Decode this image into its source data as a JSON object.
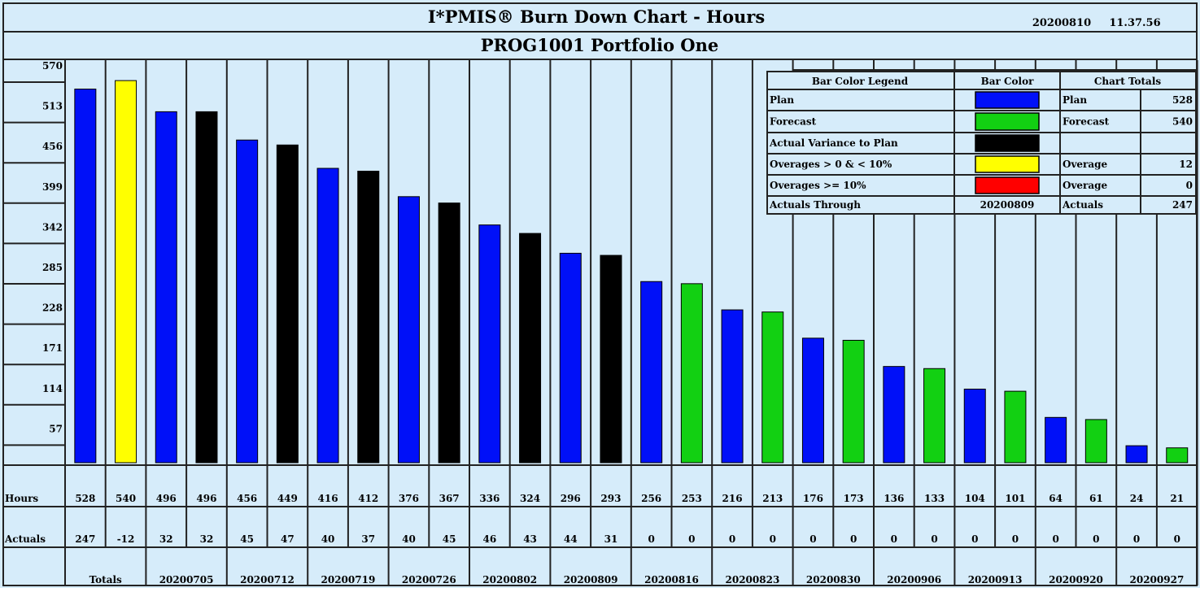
{
  "header": {
    "title": "I*PMIS® Burn Down Chart - Hours",
    "date": "20200810",
    "time": "11.37.56",
    "subtitle": "PROG1001 Portfolio One"
  },
  "colors": {
    "background": "#d6ecfa",
    "plan": "#0010f8",
    "forecast": "#12d012",
    "actual_variance": "#000000",
    "overage_lt10": "#ffff00",
    "overage_ge10": "#ff0000"
  },
  "rows": {
    "hours_label": "Hours",
    "actuals_label": "Actuals"
  },
  "legend": {
    "col1_header": "Bar Color Legend",
    "col2_header": "Bar Color",
    "col3_header": "Chart Totals",
    "items": [
      {
        "label": "Plan",
        "color": "#0010f8",
        "total_label": "Plan",
        "total_value": "528"
      },
      {
        "label": "Forecast",
        "color": "#12d012",
        "total_label": "Forecast",
        "total_value": "540"
      },
      {
        "label": "Actual Variance to Plan",
        "color": "#000000",
        "total_label": "",
        "total_value": ""
      },
      {
        "label": "Overages > 0 & < 10%",
        "color": "#ffff00",
        "total_label": "Overage",
        "total_value": "12"
      },
      {
        "label": "Overages >= 10%",
        "color": "#ff0000",
        "total_label": "Overage",
        "total_value": "0"
      }
    ],
    "through_label": "Actuals Through",
    "through_value": "20200809",
    "actuals_label": "Actuals",
    "actuals_value": "247"
  },
  "chart_data": {
    "type": "bar",
    "title": "I*PMIS® Burn Down Chart - Hours",
    "subtitle": "PROG1001 Portfolio One",
    "ylim": [
      0,
      570
    ],
    "yticks": [
      57,
      114,
      171,
      228,
      285,
      342,
      399,
      456,
      513,
      570
    ],
    "grid": false,
    "legend_position": "top-right",
    "bars": [
      {
        "value": 528,
        "actual": "247",
        "color": "#0010f8"
      },
      {
        "value": 540,
        "actual": "-12",
        "color": "#ffff00"
      },
      {
        "value": 496,
        "actual": "32",
        "color": "#0010f8"
      },
      {
        "value": 496,
        "actual": "32",
        "color": "#000000"
      },
      {
        "value": 456,
        "actual": "45",
        "color": "#0010f8"
      },
      {
        "value": 449,
        "actual": "47",
        "color": "#000000"
      },
      {
        "value": 416,
        "actual": "40",
        "color": "#0010f8"
      },
      {
        "value": 412,
        "actual": "37",
        "color": "#000000"
      },
      {
        "value": 376,
        "actual": "40",
        "color": "#0010f8"
      },
      {
        "value": 367,
        "actual": "45",
        "color": "#000000"
      },
      {
        "value": 336,
        "actual": "46",
        "color": "#0010f8"
      },
      {
        "value": 324,
        "actual": "43",
        "color": "#000000"
      },
      {
        "value": 296,
        "actual": "44",
        "color": "#0010f8"
      },
      {
        "value": 293,
        "actual": "31",
        "color": "#000000"
      },
      {
        "value": 256,
        "actual": "0",
        "color": "#0010f8"
      },
      {
        "value": 253,
        "actual": "0",
        "color": "#12d012"
      },
      {
        "value": 216,
        "actual": "0",
        "color": "#0010f8"
      },
      {
        "value": 213,
        "actual": "0",
        "color": "#12d012"
      },
      {
        "value": 176,
        "actual": "0",
        "color": "#0010f8"
      },
      {
        "value": 173,
        "actual": "0",
        "color": "#12d012"
      },
      {
        "value": 136,
        "actual": "0",
        "color": "#0010f8"
      },
      {
        "value": 133,
        "actual": "0",
        "color": "#12d012"
      },
      {
        "value": 104,
        "actual": "0",
        "color": "#0010f8"
      },
      {
        "value": 101,
        "actual": "0",
        "color": "#12d012"
      },
      {
        "value": 64,
        "actual": "0",
        "color": "#0010f8"
      },
      {
        "value": 61,
        "actual": "0",
        "color": "#12d012"
      },
      {
        "value": 24,
        "actual": "0",
        "color": "#0010f8"
      },
      {
        "value": 21,
        "actual": "0",
        "color": "#12d012"
      }
    ],
    "groups": [
      "Totals",
      "20200705",
      "20200712",
      "20200719",
      "20200726",
      "20200802",
      "20200809",
      "20200816",
      "20200823",
      "20200830",
      "20200906",
      "20200913",
      "20200920",
      "20200927"
    ]
  }
}
